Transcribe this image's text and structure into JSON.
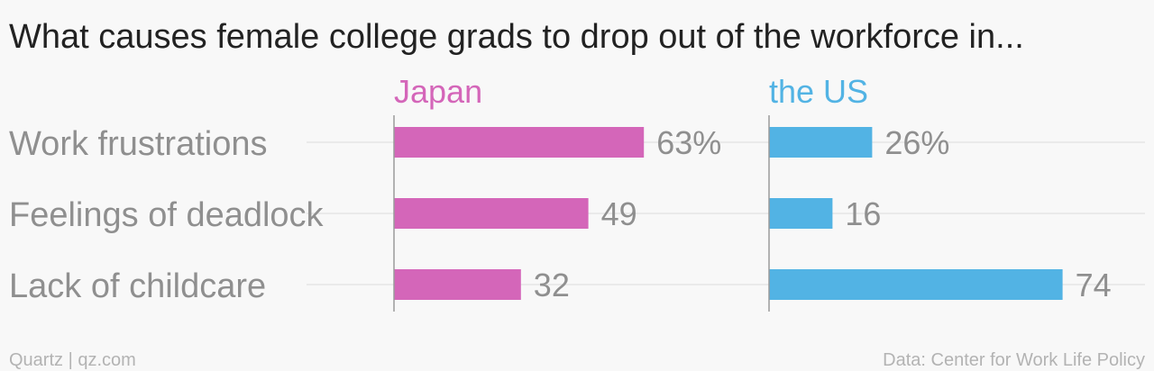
{
  "chart_data": {
    "type": "bar",
    "orientation": "horizontal",
    "title": "What causes female college grads to drop out of the workforce in...",
    "categories": [
      "Work frustrations",
      "Feelings of deadlock",
      "Lack of childcare"
    ],
    "series": [
      {
        "name": "Japan",
        "color": "#d466b9",
        "values": [
          63,
          49,
          32
        ],
        "labels": [
          "63%",
          "49",
          "32"
        ]
      },
      {
        "name": "the US",
        "color": "#52b3e4",
        "values": [
          26,
          16,
          74
        ],
        "labels": [
          "26%",
          "16",
          "74"
        ]
      }
    ],
    "xlim": [
      0,
      80
    ],
    "grid": true
  },
  "footer": {
    "source_left": "Quartz | qz.com",
    "source_right": "Data: Center for Work Life Policy"
  }
}
